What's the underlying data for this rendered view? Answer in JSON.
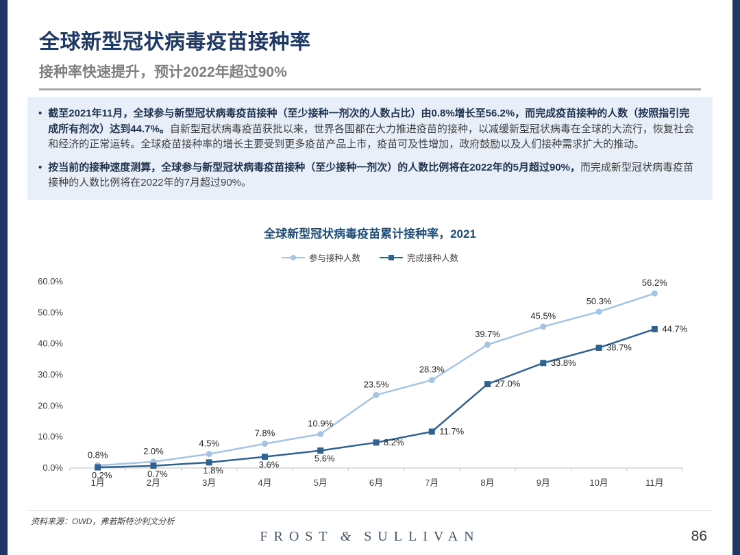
{
  "slide": {
    "title": "全球新型冠状病毒疫苗接种率",
    "subtitle": "接种率快速提升，预计2022年超过90%",
    "footer_source": "资料来源：OWD，弗若斯特沙利文分析",
    "brand_left": "FROST",
    "brand_amp": "&",
    "brand_right": "SULLIVAN",
    "page_number": "86"
  },
  "bullets": [
    {
      "bold": "截至2021年11月，全球参与新型冠状病毒疫苗接种（至少接种一剂次的人数占比）由0.8%增长至56.2%，而完成疫苗接种的人数（按照指引完成所有剂次）达到44.7%。",
      "regular": "自新型冠状病毒疫苗获批以来，世界各国都在大力推进疫苗的接种，以减缓新型冠状病毒在全球的大流行，恢复社会和经济的正常运转。全球疫苗接种率的增长主要受到更多疫苗产品上市，疫苗可及性增加，政府鼓励以及人们接种需求扩大的推动。"
    },
    {
      "bold": "按当前的接种速度测算，全球参与新型冠状病毒疫苗接种（至少接种一剂次）的人数比例将在2022年的5月超过90%，",
      "regular": "而完成新型冠状病毒疫苗接种的人数比例将在2022年的7月超过90%。"
    }
  ],
  "chart_data": {
    "type": "line",
    "title": "全球新型冠状病毒疫苗累计接种率，2021",
    "categories": [
      "1月",
      "2月",
      "3月",
      "4月",
      "5月",
      "6月",
      "7月",
      "8月",
      "9月",
      "10月",
      "11月"
    ],
    "series": [
      {
        "name": "参与接种人数",
        "color": "#a6c3e3",
        "marker": "circle",
        "values": [
          0.8,
          2.0,
          4.5,
          7.8,
          10.9,
          23.5,
          28.3,
          39.7,
          45.5,
          50.3,
          56.2
        ],
        "labels": [
          "0.8%",
          "2.0%",
          "4.5%",
          "7.8%",
          "10.9%",
          "23.5%",
          "28.3%",
          "39.7%",
          "45.5%",
          "50.3%",
          "56.2%"
        ]
      },
      {
        "name": "完成接种人数",
        "color": "#31628f",
        "marker": "square",
        "values": [
          0.2,
          0.7,
          1.8,
          3.6,
          5.6,
          8.2,
          11.7,
          27.0,
          33.8,
          38.7,
          44.7
        ],
        "labels": [
          "0.2%",
          "0.7%",
          "1.8%",
          "3.6%",
          "5.6%",
          "8.2%",
          "11.7%",
          "27.0%",
          "33.8%",
          "38.7%",
          "44.7%"
        ]
      }
    ],
    "ylim": [
      0,
      60
    ],
    "ytick_step": 10,
    "ytick_labels": [
      "0.0%",
      "10.0%",
      "20.0%",
      "30.0%",
      "40.0%",
      "50.0%",
      "60.0%"
    ],
    "grid": false,
    "legend_position": "top"
  },
  "colors": {
    "accent_navy": "#1f3864",
    "subtitle_gray": "#7f7f7f",
    "callout_bg": "#e9eff8",
    "chart_title_blue": "#1f4e79",
    "axis_gray": "#bfbfbf"
  }
}
